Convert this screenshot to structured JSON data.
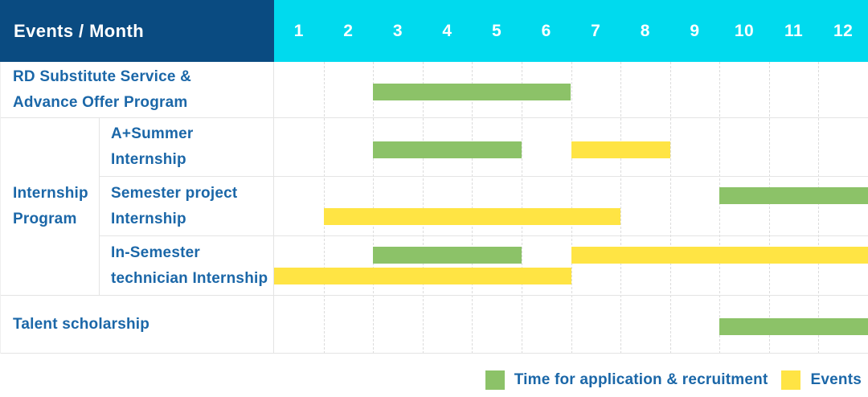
{
  "header": {
    "title": "Events / Month",
    "months": [
      "1",
      "2",
      "3",
      "4",
      "5",
      "6",
      "7",
      "8",
      "9",
      "10",
      "11",
      "12"
    ]
  },
  "row_labels": {
    "r1": [
      "RD Substitute Service &",
      "Advance Offer Program"
    ],
    "group": [
      "Internship",
      "Program"
    ],
    "r2": [
      "A+Summer",
      "Internship"
    ],
    "r3": [
      "Semester project",
      "Internship"
    ],
    "r4": [
      "In-Semester",
      "technician Internship"
    ],
    "r5": [
      "Talent scholarship"
    ]
  },
  "legend": {
    "items": [
      {
        "kind": "application",
        "label": "Time for application & recruitment"
      },
      {
        "kind": "events",
        "label": "Events"
      }
    ]
  },
  "colors": {
    "navy": "#0a4b81",
    "cyan": "#00daee",
    "green": "#8cc268",
    "yellow": "#ffe444",
    "blue": "#1b67a8",
    "grid": "#dcdcdc",
    "line": "#e4e4e4"
  },
  "chart_data": {
    "type": "table",
    "subtype": "gantt",
    "title": "Events / Month",
    "x_axis": {
      "label": "Month",
      "ticks": [
        1,
        2,
        3,
        4,
        5,
        6,
        7,
        8,
        9,
        10,
        11,
        12
      ],
      "range": [
        1,
        12
      ]
    },
    "legend_position": "bottom-right",
    "grid": true,
    "series_meaning": {
      "application": "Time for application & recruitment",
      "events": "Events"
    },
    "rows": [
      {
        "category": "RD Substitute Service & Advance Offer Program",
        "group": null,
        "spans": [
          {
            "kind": "application",
            "months": [
              3,
              6
            ],
            "lane": "single"
          }
        ]
      },
      {
        "category": "A+Summer Internship",
        "group": "Internship Program",
        "spans": [
          {
            "kind": "application",
            "months": [
              3,
              5
            ],
            "lane": "single"
          },
          {
            "kind": "events",
            "months": [
              7,
              8
            ],
            "lane": "single"
          }
        ]
      },
      {
        "category": "Semester project Internship",
        "group": "Internship Program",
        "spans": [
          {
            "kind": "application",
            "months": [
              10,
              12
            ],
            "lane": "top"
          },
          {
            "kind": "events",
            "months": [
              2,
              7
            ],
            "lane": "bottom"
          }
        ]
      },
      {
        "category": "In-Semester technician Internship",
        "group": "Internship Program",
        "spans": [
          {
            "kind": "application",
            "months": [
              3,
              5
            ],
            "lane": "top"
          },
          {
            "kind": "events",
            "months": [
              7,
              12
            ],
            "lane": "top"
          },
          {
            "kind": "events",
            "months": [
              1,
              6
            ],
            "lane": "bottom"
          }
        ]
      },
      {
        "category": "Talent scholarship",
        "group": null,
        "spans": [
          {
            "kind": "application",
            "months": [
              10,
              12
            ],
            "lane": "single"
          }
        ]
      }
    ]
  }
}
